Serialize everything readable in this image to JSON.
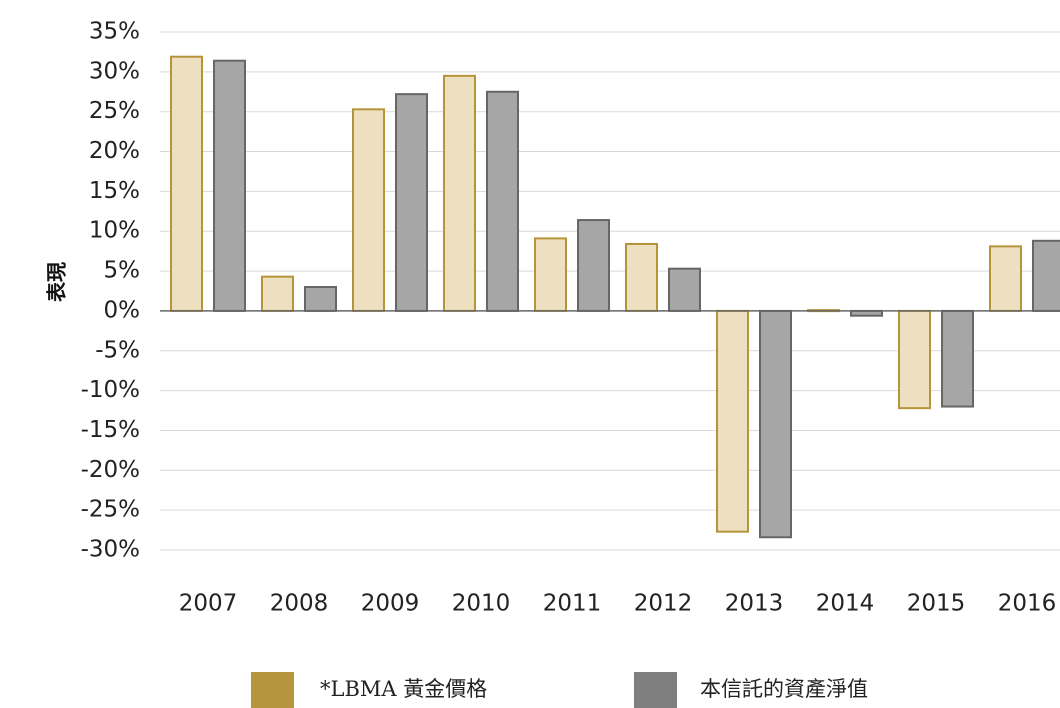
{
  "chart_data": {
    "type": "bar",
    "title": "",
    "xlabel": "",
    "ylabel": "表現",
    "categories": [
      "2007",
      "2008",
      "2009",
      "2010",
      "2011",
      "2012",
      "2013",
      "2014",
      "2015",
      "2016"
    ],
    "ylim": [
      -30,
      35
    ],
    "yticks": [
      35,
      30,
      25,
      20,
      15,
      10,
      5,
      0,
      -5,
      -10,
      -15,
      -20,
      -25,
      -30
    ],
    "ytick_labels": [
      "35%",
      "30%",
      "25%",
      "20%",
      "15%",
      "10%",
      "5%",
      "0%",
      "-5%",
      "-10%",
      "-15%",
      "-20%",
      "-25%",
      "-30%"
    ],
    "grid": true,
    "legend_position": "bottom",
    "series": [
      {
        "name": "*LBMA 黃金價格",
        "fill": "#ede0c0",
        "stroke": "#b5943a",
        "legend_color": "#b5963e",
        "values": [
          31.9,
          4.3,
          25.3,
          29.5,
          9.1,
          8.4,
          -27.7,
          0.1,
          -12.2,
          8.1
        ]
      },
      {
        "name": "本信託的資產淨值",
        "fill": "#a6a6a6",
        "stroke": "#666666",
        "legend_color": "#7f7f7f",
        "values": [
          31.4,
          3.0,
          27.2,
          27.5,
          11.4,
          5.3,
          -28.4,
          -0.6,
          -12.0,
          8.8
        ]
      }
    ]
  }
}
